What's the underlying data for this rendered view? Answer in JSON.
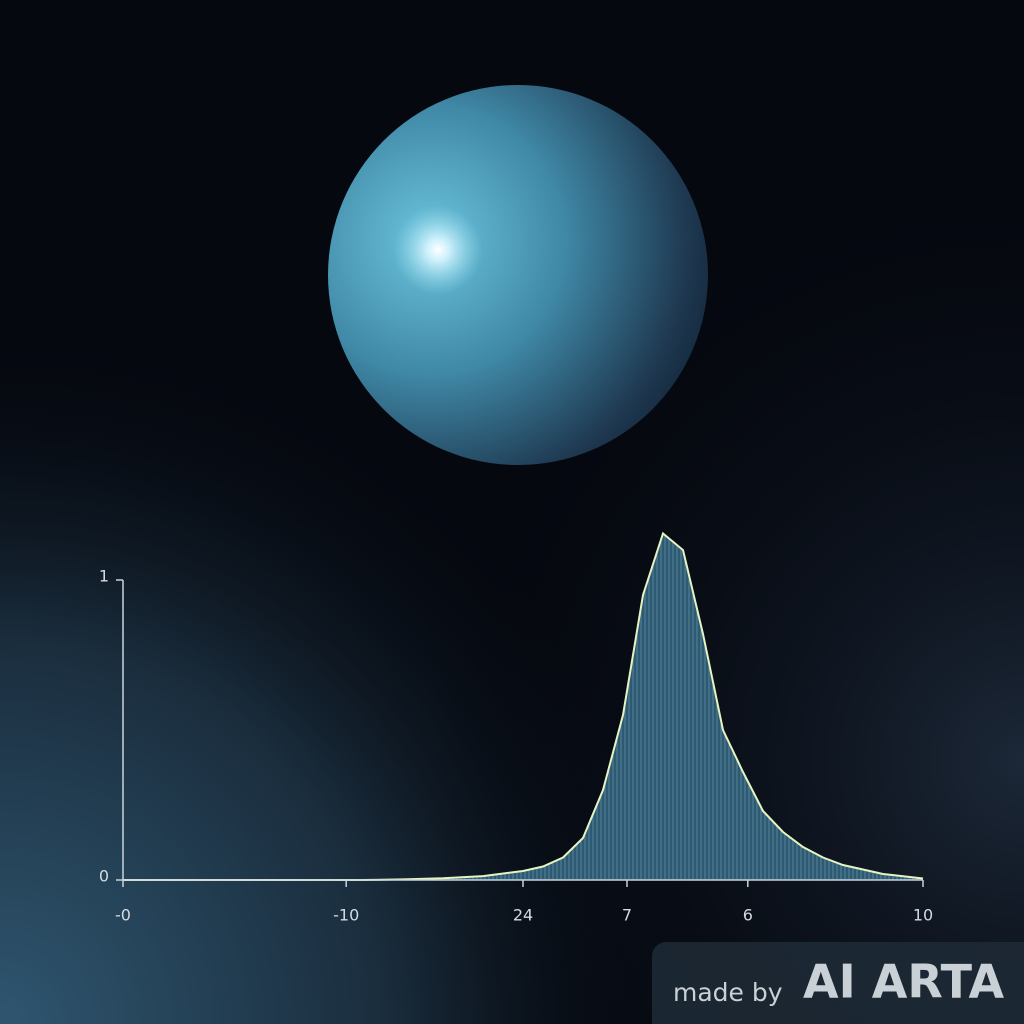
{
  "chart_data": {
    "type": "area",
    "x": [
      0,
      3,
      3.5,
      4,
      4.5,
      5,
      5.25,
      5.5,
      5.75,
      6,
      6.25,
      6.5,
      6.75,
      7,
      7.25,
      7.5,
      7.75,
      8,
      8.25,
      8.5,
      8.75,
      9,
      9.5,
      10
    ],
    "values": [
      0,
      0,
      0.002,
      0.006,
      0.013,
      0.03,
      0.045,
      0.075,
      0.14,
      0.3,
      0.55,
      0.95,
      1.155,
      1.1,
      0.82,
      0.5,
      0.36,
      0.23,
      0.16,
      0.11,
      0.075,
      0.05,
      0.02,
      0.005
    ],
    "color": "#2d5a72",
    "line_color": "#e6f3c2",
    "xlim": [
      0,
      10
    ],
    "ylim": [
      0,
      1
    ],
    "xticks": [
      {
        "value": 0,
        "label": "-0"
      },
      {
        "value": 2.79,
        "label": "-10"
      },
      {
        "value": 5,
        "label": "24"
      },
      {
        "value": 6.3,
        "label": "7"
      },
      {
        "value": 7.81,
        "label": "6"
      },
      10
    ],
    "yticks": [
      0,
      1
    ]
  },
  "watermark": {
    "prefix": "made by",
    "brand": "AI ARTA"
  }
}
